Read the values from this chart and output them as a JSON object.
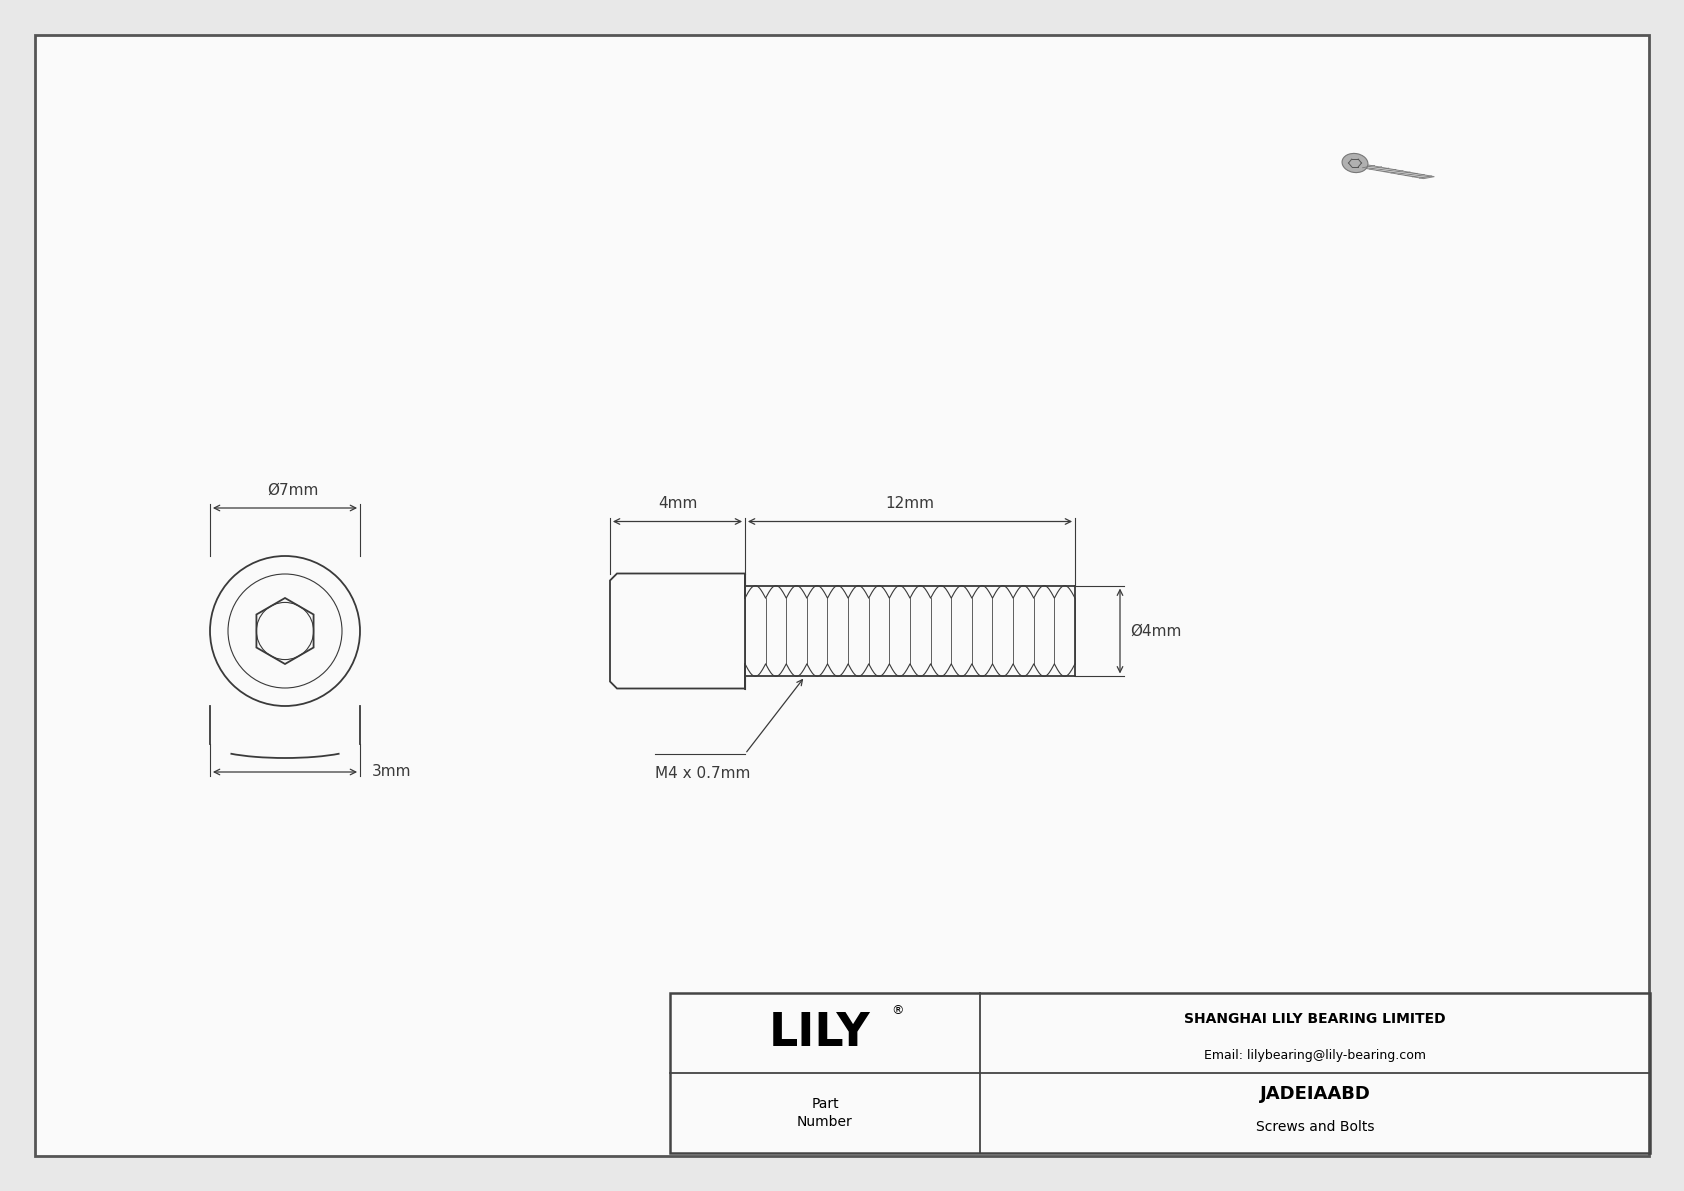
{
  "bg_color": "#e8e8e8",
  "drawing_bg": "#f5f5f5",
  "line_color": "#3a3a3a",
  "dim_color": "#3a3a3a",
  "title": "JADEIAABD",
  "subtitle": "Screws and Bolts",
  "company": "SHANGHAI LILY BEARING LIMITED",
  "email": "Email: lilybearing@lily-bearing.com",
  "brand": "LILY",
  "part_label": "Part\nNumber",
  "dim_head_diameter": "Ø7mm",
  "dim_head_height": "3mm",
  "dim_thread_length": "12mm",
  "dim_head_len": "4mm",
  "dim_thread_dia": "Ø4mm",
  "dim_thread_label": "M4 x 0.7mm",
  "lw": 1.3,
  "lw_thin": 0.8,
  "lw_dim": 0.9
}
